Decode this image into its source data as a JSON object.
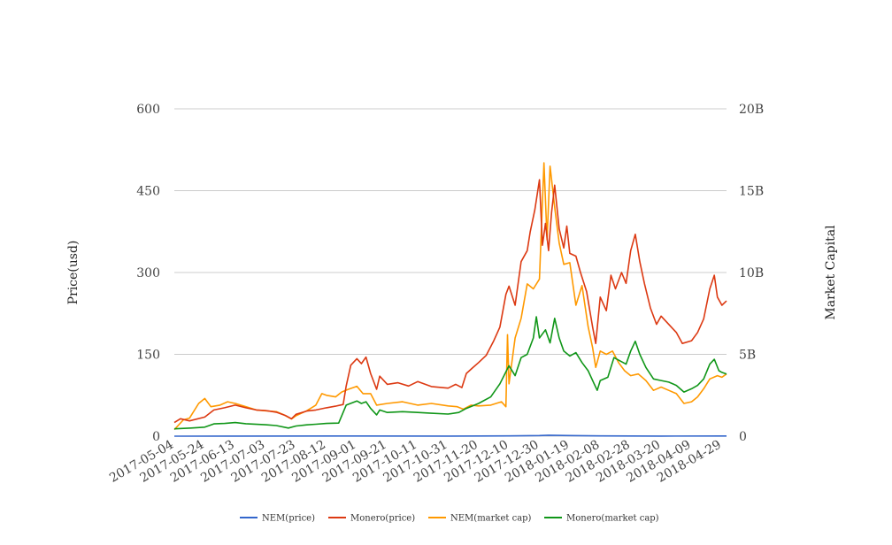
{
  "chart_data": {
    "type": "line",
    "title": "",
    "grid": true,
    "legend_position": "bottom",
    "left_axis": {
      "label": "Price(usd)",
      "ticks": [
        "0",
        "150",
        "300",
        "450",
        "600"
      ],
      "range": [
        0,
        600
      ]
    },
    "right_axis": {
      "label": "Market Capital",
      "ticks": [
        "0",
        "5B",
        "10B",
        "15B",
        "20B"
      ],
      "range": [
        0,
        20000000000
      ]
    },
    "x_ticks": [
      "2017-05-04",
      "2017-05-24",
      "2017-06-13",
      "2017-07-03",
      "2017-07-23",
      "2017-08-12",
      "2017-09-01",
      "2017-09-21",
      "2017-10-11",
      "2017-10-31",
      "2017-11-20",
      "2017-12-10",
      "2017-12-30",
      "2018-01-19",
      "2018-02-08",
      "2018-02-28",
      "2018-03-20",
      "2018-04-09",
      "2018-04-29"
    ],
    "x_range": [
      "2017-05-04",
      "2018-05-02"
    ],
    "series": [
      {
        "name": "NEM(price)",
        "axis": "left",
        "color": "#3366cc",
        "points": [
          [
            "2017-05-04",
            0.03
          ],
          [
            "2017-06-13",
            0.2
          ],
          [
            "2017-09-01",
            0.32
          ],
          [
            "2017-10-31",
            0.2
          ],
          [
            "2017-12-10",
            0.5
          ],
          [
            "2017-12-30",
            1.2
          ],
          [
            "2018-01-05",
            1.8
          ],
          [
            "2018-01-19",
            1.1
          ],
          [
            "2018-02-08",
            0.45
          ],
          [
            "2018-03-20",
            0.22
          ],
          [
            "2018-04-29",
            0.36
          ],
          [
            "2018-05-02",
            0.38
          ]
        ]
      },
      {
        "name": "Monero(price)",
        "axis": "left",
        "color": "#dc3912",
        "points": [
          [
            "2017-05-04",
            25
          ],
          [
            "2017-05-08",
            32
          ],
          [
            "2017-05-14",
            28
          ],
          [
            "2017-05-24",
            35
          ],
          [
            "2017-05-30",
            48
          ],
          [
            "2017-06-06",
            52
          ],
          [
            "2017-06-13",
            57
          ],
          [
            "2017-06-20",
            52
          ],
          [
            "2017-06-27",
            48
          ],
          [
            "2017-07-03",
            47
          ],
          [
            "2017-07-10",
            44
          ],
          [
            "2017-07-16",
            38
          ],
          [
            "2017-07-20",
            32
          ],
          [
            "2017-07-23",
            40
          ],
          [
            "2017-07-30",
            46
          ],
          [
            "2017-08-05",
            48
          ],
          [
            "2017-08-12",
            52
          ],
          [
            "2017-08-18",
            55
          ],
          [
            "2017-08-23",
            58
          ],
          [
            "2017-08-25",
            92
          ],
          [
            "2017-08-28",
            130
          ],
          [
            "2017-09-01",
            142
          ],
          [
            "2017-09-04",
            133
          ],
          [
            "2017-09-07",
            145
          ],
          [
            "2017-09-10",
            115
          ],
          [
            "2017-09-14",
            86
          ],
          [
            "2017-09-16",
            110
          ],
          [
            "2017-09-21",
            95
          ],
          [
            "2017-09-28",
            98
          ],
          [
            "2017-10-05",
            92
          ],
          [
            "2017-10-11",
            100
          ],
          [
            "2017-10-20",
            91
          ],
          [
            "2017-10-31",
            88
          ],
          [
            "2017-11-05",
            95
          ],
          [
            "2017-11-09",
            89
          ],
          [
            "2017-11-12",
            115
          ],
          [
            "2017-11-16",
            125
          ],
          [
            "2017-11-20",
            135
          ],
          [
            "2017-11-25",
            148
          ],
          [
            "2017-11-30",
            175
          ],
          [
            "2017-12-04",
            200
          ],
          [
            "2017-12-08",
            260
          ],
          [
            "2017-12-10",
            275
          ],
          [
            "2017-12-14",
            240
          ],
          [
            "2017-12-18",
            320
          ],
          [
            "2017-12-22",
            340
          ],
          [
            "2017-12-24",
            375
          ],
          [
            "2017-12-27",
            415
          ],
          [
            "2017-12-30",
            470
          ],
          [
            "2018-01-01",
            350
          ],
          [
            "2018-01-03",
            390
          ],
          [
            "2018-01-05",
            340
          ],
          [
            "2018-01-07",
            410
          ],
          [
            "2018-01-09",
            460
          ],
          [
            "2018-01-12",
            380
          ],
          [
            "2018-01-15",
            345
          ],
          [
            "2018-01-17",
            385
          ],
          [
            "2018-01-19",
            335
          ],
          [
            "2018-01-23",
            330
          ],
          [
            "2018-01-26",
            300
          ],
          [
            "2018-01-30",
            265
          ],
          [
            "2018-02-03",
            200
          ],
          [
            "2018-02-05",
            170
          ],
          [
            "2018-02-08",
            255
          ],
          [
            "2018-02-12",
            230
          ],
          [
            "2018-02-15",
            295
          ],
          [
            "2018-02-18",
            270
          ],
          [
            "2018-02-22",
            300
          ],
          [
            "2018-02-25",
            280
          ],
          [
            "2018-02-28",
            340
          ],
          [
            "2018-03-03",
            370
          ],
          [
            "2018-03-06",
            320
          ],
          [
            "2018-03-09",
            280
          ],
          [
            "2018-03-13",
            235
          ],
          [
            "2018-03-17",
            205
          ],
          [
            "2018-03-20",
            220
          ],
          [
            "2018-03-25",
            205
          ],
          [
            "2018-03-30",
            190
          ],
          [
            "2018-04-03",
            170
          ],
          [
            "2018-04-09",
            175
          ],
          [
            "2018-04-13",
            190
          ],
          [
            "2018-04-17",
            215
          ],
          [
            "2018-04-21",
            270
          ],
          [
            "2018-04-24",
            295
          ],
          [
            "2018-04-26",
            255
          ],
          [
            "2018-04-29",
            240
          ],
          [
            "2018-05-02",
            248
          ]
        ]
      },
      {
        "name": "NEM(market cap)",
        "axis": "right",
        "color": "#ff9900",
        "points": [
          [
            "2017-05-04",
            400000000
          ],
          [
            "2017-05-10",
            1000000000
          ],
          [
            "2017-05-14",
            1100000000
          ],
          [
            "2017-05-20",
            2000000000
          ],
          [
            "2017-05-24",
            2300000000
          ],
          [
            "2017-05-28",
            1800000000
          ],
          [
            "2017-06-03",
            1900000000
          ],
          [
            "2017-06-08",
            2100000000
          ],
          [
            "2017-06-13",
            2000000000
          ],
          [
            "2017-06-20",
            1800000000
          ],
          [
            "2017-06-27",
            1600000000
          ],
          [
            "2017-07-03",
            1550000000
          ],
          [
            "2017-07-10",
            1500000000
          ],
          [
            "2017-07-15",
            1300000000
          ],
          [
            "2017-07-20",
            1050000000
          ],
          [
            "2017-07-23",
            1250000000
          ],
          [
            "2017-07-30",
            1550000000
          ],
          [
            "2017-08-05",
            1900000000
          ],
          [
            "2017-08-09",
            2600000000
          ],
          [
            "2017-08-12",
            2500000000
          ],
          [
            "2017-08-18",
            2400000000
          ],
          [
            "2017-08-22",
            2700000000
          ],
          [
            "2017-08-26",
            2850000000
          ],
          [
            "2017-09-01",
            3050000000
          ],
          [
            "2017-09-05",
            2600000000
          ],
          [
            "2017-09-10",
            2600000000
          ],
          [
            "2017-09-14",
            1900000000
          ],
          [
            "2017-09-21",
            2000000000
          ],
          [
            "2017-10-01",
            2100000000
          ],
          [
            "2017-10-11",
            1900000000
          ],
          [
            "2017-10-20",
            2000000000
          ],
          [
            "2017-10-31",
            1850000000
          ],
          [
            "2017-11-06",
            1800000000
          ],
          [
            "2017-11-10",
            1650000000
          ],
          [
            "2017-11-15",
            1900000000
          ],
          [
            "2017-11-20",
            1850000000
          ],
          [
            "2017-11-28",
            1900000000
          ],
          [
            "2017-12-05",
            2100000000
          ],
          [
            "2017-12-08",
            1800000000
          ],
          [
            "2017-12-09",
            6200000000
          ],
          [
            "2017-12-10",
            3200000000
          ],
          [
            "2017-12-14",
            6000000000
          ],
          [
            "2017-12-18",
            7200000000
          ],
          [
            "2017-12-22",
            9300000000
          ],
          [
            "2017-12-26",
            9000000000
          ],
          [
            "2017-12-30",
            9600000000
          ],
          [
            "2018-01-02",
            16700000000
          ],
          [
            "2018-01-04",
            12000000000
          ],
          [
            "2018-01-06",
            16500000000
          ],
          [
            "2018-01-09",
            14000000000
          ],
          [
            "2018-01-12",
            11800000000
          ],
          [
            "2018-01-15",
            10500000000
          ],
          [
            "2018-01-19",
            10600000000
          ],
          [
            "2018-01-23",
            8000000000
          ],
          [
            "2018-01-27",
            9200000000
          ],
          [
            "2018-01-31",
            6700000000
          ],
          [
            "2018-02-03",
            5400000000
          ],
          [
            "2018-02-05",
            4200000000
          ],
          [
            "2018-02-08",
            5200000000
          ],
          [
            "2018-02-12",
            5000000000
          ],
          [
            "2018-02-16",
            5200000000
          ],
          [
            "2018-02-20",
            4500000000
          ],
          [
            "2018-02-24",
            4000000000
          ],
          [
            "2018-02-28",
            3700000000
          ],
          [
            "2018-03-05",
            3800000000
          ],
          [
            "2018-03-10",
            3400000000
          ],
          [
            "2018-03-15",
            2800000000
          ],
          [
            "2018-03-20",
            3000000000
          ],
          [
            "2018-03-25",
            2800000000
          ],
          [
            "2018-03-30",
            2600000000
          ],
          [
            "2018-04-04",
            2000000000
          ],
          [
            "2018-04-09",
            2100000000
          ],
          [
            "2018-04-13",
            2400000000
          ],
          [
            "2018-04-17",
            2900000000
          ],
          [
            "2018-04-21",
            3500000000
          ],
          [
            "2018-04-26",
            3700000000
          ],
          [
            "2018-04-29",
            3600000000
          ],
          [
            "2018-05-02",
            3800000000
          ]
        ]
      },
      {
        "name": "Monero(market cap)",
        "axis": "right",
        "color": "#109618",
        "points": [
          [
            "2017-05-04",
            450000000
          ],
          [
            "2017-05-15",
            500000000
          ],
          [
            "2017-05-24",
            550000000
          ],
          [
            "2017-05-30",
            750000000
          ],
          [
            "2017-06-06",
            780000000
          ],
          [
            "2017-06-13",
            830000000
          ],
          [
            "2017-06-20",
            760000000
          ],
          [
            "2017-07-03",
            700000000
          ],
          [
            "2017-07-10",
            650000000
          ],
          [
            "2017-07-18",
            500000000
          ],
          [
            "2017-07-23",
            620000000
          ],
          [
            "2017-07-30",
            690000000
          ],
          [
            "2017-08-05",
            730000000
          ],
          [
            "2017-08-12",
            780000000
          ],
          [
            "2017-08-20",
            800000000
          ],
          [
            "2017-08-25",
            1900000000
          ],
          [
            "2017-09-01",
            2150000000
          ],
          [
            "2017-09-04",
            2000000000
          ],
          [
            "2017-09-07",
            2100000000
          ],
          [
            "2017-09-10",
            1700000000
          ],
          [
            "2017-09-14",
            1300000000
          ],
          [
            "2017-09-16",
            1600000000
          ],
          [
            "2017-09-21",
            1450000000
          ],
          [
            "2017-10-01",
            1500000000
          ],
          [
            "2017-10-11",
            1450000000
          ],
          [
            "2017-10-20",
            1400000000
          ],
          [
            "2017-10-31",
            1350000000
          ],
          [
            "2017-11-07",
            1450000000
          ],
          [
            "2017-11-12",
            1700000000
          ],
          [
            "2017-11-20",
            2000000000
          ],
          [
            "2017-11-28",
            2400000000
          ],
          [
            "2017-12-04",
            3200000000
          ],
          [
            "2017-12-10",
            4300000000
          ],
          [
            "2017-12-14",
            3700000000
          ],
          [
            "2017-12-18",
            4800000000
          ],
          [
            "2017-12-22",
            5000000000
          ],
          [
            "2017-12-26",
            6000000000
          ],
          [
            "2017-12-28",
            7300000000
          ],
          [
            "2017-12-30",
            6000000000
          ],
          [
            "2018-01-03",
            6500000000
          ],
          [
            "2018-01-06",
            5700000000
          ],
          [
            "2018-01-09",
            7200000000
          ],
          [
            "2018-01-12",
            6000000000
          ],
          [
            "2018-01-15",
            5200000000
          ],
          [
            "2018-01-19",
            4900000000
          ],
          [
            "2018-01-23",
            5100000000
          ],
          [
            "2018-01-27",
            4500000000
          ],
          [
            "2018-01-31",
            4000000000
          ],
          [
            "2018-02-04",
            3200000000
          ],
          [
            "2018-02-06",
            2800000000
          ],
          [
            "2018-02-08",
            3400000000
          ],
          [
            "2018-02-13",
            3600000000
          ],
          [
            "2018-02-17",
            4800000000
          ],
          [
            "2018-02-21",
            4600000000
          ],
          [
            "2018-02-25",
            4400000000
          ],
          [
            "2018-02-28",
            5200000000
          ],
          [
            "2018-03-03",
            5800000000
          ],
          [
            "2018-03-06",
            5000000000
          ],
          [
            "2018-03-10",
            4200000000
          ],
          [
            "2018-03-15",
            3500000000
          ],
          [
            "2018-03-20",
            3400000000
          ],
          [
            "2018-03-25",
            3300000000
          ],
          [
            "2018-03-30",
            3100000000
          ],
          [
            "2018-04-04",
            2700000000
          ],
          [
            "2018-04-09",
            2900000000
          ],
          [
            "2018-04-13",
            3100000000
          ],
          [
            "2018-04-17",
            3500000000
          ],
          [
            "2018-04-21",
            4400000000
          ],
          [
            "2018-04-24",
            4700000000
          ],
          [
            "2018-04-27",
            4000000000
          ],
          [
            "2018-04-29",
            3900000000
          ],
          [
            "2018-05-02",
            3800000000
          ]
        ]
      }
    ]
  }
}
